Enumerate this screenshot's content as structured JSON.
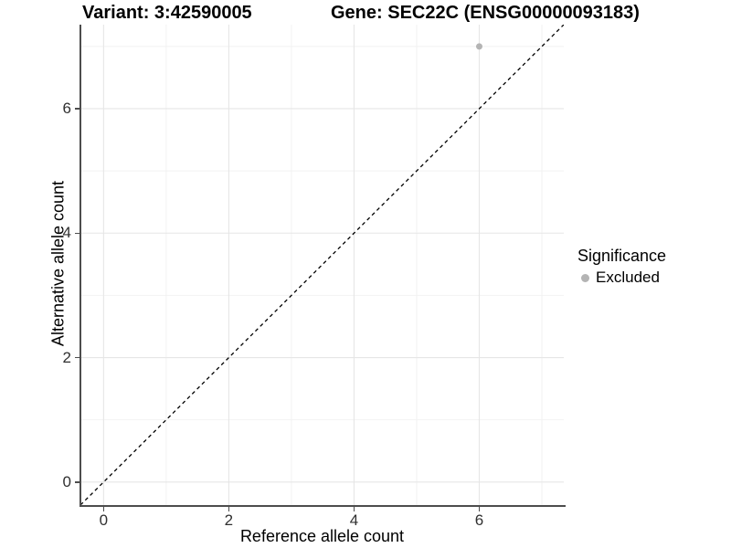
{
  "titles": {
    "variant": "Variant: 3:42590005",
    "gene": "Gene: SEC22C (ENSG00000093183)"
  },
  "axes": {
    "x_label": "Reference allele count",
    "y_label": "Alternative allele count"
  },
  "legend": {
    "title": "Significance",
    "items": [
      {
        "label": "Excluded",
        "color": "#b4b4b4",
        "marker": "circle"
      }
    ]
  },
  "colors": {
    "background": "#ffffff",
    "axis_line": "#4d4d4d",
    "tick_label": "#303030",
    "grid_major": "#e6e6e6",
    "grid_minor": "#f2f2f2",
    "identity_line": "#000000",
    "point": "#b4b4b4"
  },
  "chart_data": {
    "type": "scatter",
    "title": "Variant: 3:42590005    Gene: SEC22C (ENSG00000093183)",
    "xlabel": "Reference allele count",
    "ylabel": "Alternative allele count",
    "xlim": [
      -0.37,
      7.35
    ],
    "ylim": [
      -0.37,
      7.35
    ],
    "x_major_ticks": [
      0,
      2,
      4,
      6
    ],
    "y_major_ticks": [
      0,
      2,
      4,
      6
    ],
    "x_minor_ticks": [
      1,
      3,
      5,
      7
    ],
    "y_minor_ticks": [
      1,
      3,
      5,
      7
    ],
    "grid": true,
    "legend_position": "right",
    "reference_line": {
      "type": "identity",
      "style": "dashed",
      "color": "#000000"
    },
    "series": [
      {
        "name": "Excluded",
        "color": "#b4b4b4",
        "points": [
          {
            "x": 6,
            "y": 7
          }
        ]
      }
    ]
  }
}
